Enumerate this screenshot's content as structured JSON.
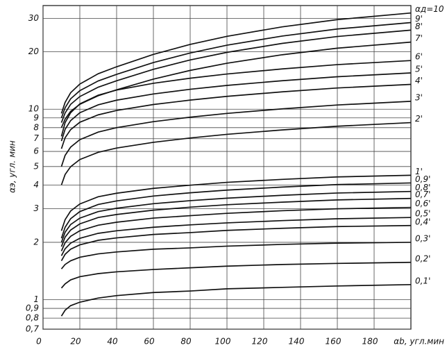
{
  "chart_data": {
    "type": "line",
    "y_label": "αэ, угл. мин",
    "x_label": "αb, угл.мин",
    "log_y": true,
    "grid": true,
    "color": "#111111",
    "x": [
      10,
      12,
      15,
      20,
      30,
      40,
      60,
      80,
      100,
      130,
      160,
      200
    ],
    "xlim": [
      0,
      200
    ],
    "xticks": [
      0,
      20,
      40,
      60,
      80,
      100,
      120,
      140,
      160,
      180
    ],
    "ylim": [
      0.7,
      35
    ],
    "yticks": [
      {
        "value": 0.7,
        "label": "0,7"
      },
      {
        "value": 0.8,
        "label": "0,8"
      },
      {
        "value": 0.9,
        "label": "0,9"
      },
      1,
      2,
      3,
      4,
      5,
      6,
      7,
      8,
      9,
      10,
      20,
      30
    ],
    "series": [
      {
        "name": "αд=10",
        "values": [
          9.5,
          10.85,
          12.2,
          13.55,
          15.35,
          16.7,
          19.4,
          21.88,
          24.13,
          27.05,
          29.53,
          32
        ]
      },
      {
        "name": "9'",
        "values": [
          9,
          10.17,
          11.34,
          12.51,
          14.07,
          15.24,
          17.58,
          19.73,
          21.68,
          24.21,
          26.36,
          28.5
        ]
      },
      {
        "name": "8'",
        "values": [
          8.5,
          9.55,
          10.6,
          11.65,
          13.05,
          14.1,
          16.2,
          18.13,
          19.88,
          22.15,
          24.08,
          26
        ]
      },
      {
        "name": "7'",
        "values": [
          8,
          8.87,
          9.74,
          10.61,
          11.77,
          12.64,
          14.38,
          15.98,
          17.43,
          19.31,
          20.91,
          22.5
        ]
      },
      {
        "name": "6'",
        "values": [
          7.2,
          8.5,
          9.58,
          10.66,
          11.84,
          12.6,
          13.68,
          14.54,
          15.3,
          16.27,
          17.14,
          18
        ]
      },
      {
        "name": "5'",
        "values": [
          6.8,
          7.84,
          8.71,
          9.58,
          10.54,
          11.15,
          12.02,
          12.72,
          13.33,
          14.11,
          14.8,
          15.5
        ]
      },
      {
        "name": "4'",
        "values": [
          6.2,
          7.08,
          7.81,
          8.54,
          9.34,
          9.85,
          10.58,
          11.16,
          11.68,
          12.33,
          12.92,
          13.5
        ]
      },
      {
        "name": "3'",
        "values": [
          5,
          5.72,
          6.32,
          6.92,
          7.58,
          8,
          8.6,
          9.08,
          9.5,
          10.04,
          10.52,
          11
        ]
      },
      {
        "name": "2'",
        "values": [
          4,
          4.54,
          4.99,
          5.44,
          5.94,
          6.25,
          6.7,
          7.06,
          7.38,
          7.78,
          8.14,
          8.5
        ]
      },
      {
        "name": "1'",
        "values": [
          2.3,
          2.63,
          2.92,
          3.18,
          3.47,
          3.62,
          3.84,
          3.99,
          4.13,
          4.28,
          4.41,
          4.5
        ]
      },
      {
        "name": "0,9'",
        "values": [
          2.1,
          2.4,
          2.66,
          2.9,
          3.16,
          3.3,
          3.5,
          3.64,
          3.76,
          3.9,
          4.02,
          4.1
        ]
      },
      {
        "name": "0,8'",
        "values": [
          2,
          2.26,
          2.48,
          2.68,
          2.9,
          3.02,
          3.19,
          3.31,
          3.41,
          3.53,
          3.63,
          3.7
        ]
      },
      {
        "name": "0,7'",
        "values": [
          1.9,
          2.13,
          2.32,
          2.5,
          2.7,
          2.8,
          2.95,
          3.06,
          3.15,
          3.25,
          3.34,
          3.4
        ]
      },
      {
        "name": "0,6'",
        "values": [
          1.8,
          1.99,
          2.15,
          2.3,
          2.46,
          2.55,
          2.68,
          2.76,
          2.84,
          2.93,
          3,
          3.05
        ]
      },
      {
        "name": "0,5'",
        "values": [
          1.7,
          1.85,
          1.98,
          2.1,
          2.23,
          2.3,
          2.4,
          2.47,
          2.53,
          2.6,
          2.66,
          2.7
        ]
      },
      {
        "name": "0,4'",
        "values": [
          1.6,
          1.73,
          1.84,
          1.94,
          2.05,
          2.11,
          2.2,
          2.25,
          2.31,
          2.37,
          2.42,
          2.45
        ]
      },
      {
        "name": "0,3'",
        "values": [
          1.45,
          1.53,
          1.6,
          1.67,
          1.74,
          1.78,
          1.84,
          1.87,
          1.91,
          1.95,
          1.98,
          2
        ]
      },
      {
        "name": "0,2'",
        "values": [
          1.15,
          1.21,
          1.27,
          1.32,
          1.37,
          1.4,
          1.44,
          1.47,
          1.5,
          1.53,
          1.55,
          1.57
        ]
      },
      {
        "name": "0,1'",
        "values": [
          0.82,
          0.88,
          0.93,
          0.97,
          1.02,
          1.05,
          1.09,
          1.11,
          1.14,
          1.16,
          1.18,
          1.2
        ]
      }
    ]
  }
}
